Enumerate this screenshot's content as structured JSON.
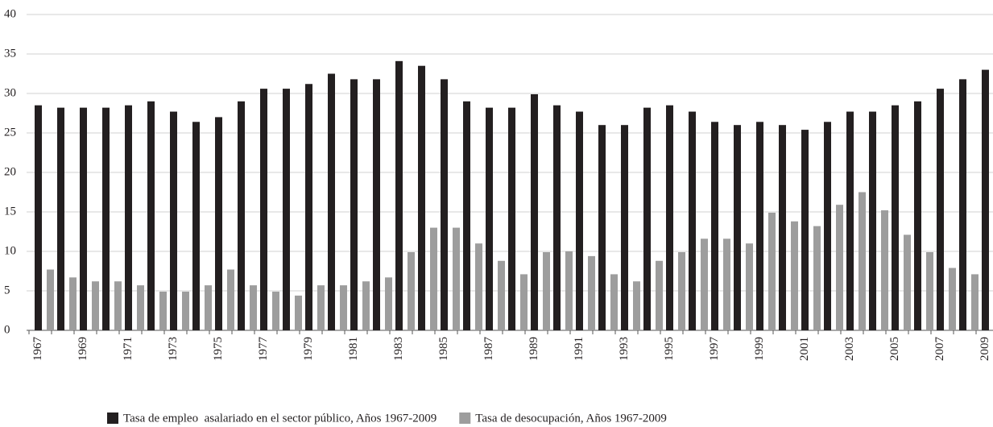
{
  "chart_data": {
    "type": "bar",
    "categories": [
      "1967",
      null,
      "1969",
      null,
      "1971",
      null,
      "1973",
      null,
      "1975",
      null,
      "1977",
      null,
      "1979",
      null,
      "1981",
      null,
      "1983",
      null,
      "1985",
      null,
      "1987",
      null,
      "1989",
      null,
      "1991",
      null,
      "1993",
      null,
      "1995",
      null,
      "1997",
      null,
      "1999",
      null,
      "2001",
      null,
      "2003",
      null,
      "2005",
      null,
      "2007",
      null,
      "2009"
    ],
    "series": [
      {
        "name": "Tasa de empleo  asalariado en el sector público, Años 1967-2009",
        "color": "#231f20",
        "values": [
          28.5,
          28.2,
          28.2,
          28.2,
          28.5,
          29,
          27.7,
          26.4,
          27,
          29,
          30.6,
          30.6,
          31.2,
          32.5,
          31.8,
          31.8,
          34.1,
          33.5,
          31.8,
          29,
          28.2,
          28.2,
          29.9,
          28.5,
          27.7,
          26,
          26,
          28.2,
          28.5,
          27.7,
          26.4,
          26,
          26.4,
          26,
          25.4,
          26.4,
          27.7,
          27.7,
          28.5,
          29,
          30.6,
          31.8,
          33
        ]
      },
      {
        "name": "Tasa de desocupación, Años 1967-2009",
        "color": "#9d9d9d",
        "values": [
          7.7,
          6.7,
          6.2,
          6.2,
          5.7,
          4.9,
          4.9,
          5.7,
          7.7,
          5.7,
          4.9,
          4.4,
          5.7,
          5.7,
          6.2,
          6.7,
          9.9,
          13,
          13,
          11,
          8.8,
          7.1,
          9.9,
          10,
          9.4,
          7.1,
          6.2,
          8.8,
          9.9,
          11.6,
          11.6,
          11,
          14.9,
          13.8,
          13.2,
          15.9,
          17.5,
          15.2,
          12.1,
          9.9,
          7.9,
          7.1,
          null
        ]
      }
    ],
    "ylim": [
      0,
      40
    ],
    "yticks": [
      0,
      5,
      10,
      15,
      20,
      25,
      30,
      35,
      40
    ],
    "grid": true,
    "legend": "bottom"
  }
}
